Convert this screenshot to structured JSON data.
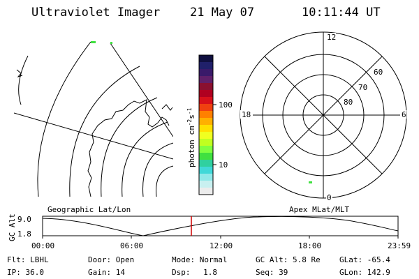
{
  "header": {
    "title": "Ultraviolet Imager",
    "date": "21 May 07",
    "time": "10:11:44 UT"
  },
  "colorbar": {
    "label": "photon cm",
    "label_sup1": "-2",
    "label_mid": "s",
    "label_sup2": "-1",
    "ticks": [
      "100",
      "10"
    ],
    "colors": [
      "#101040",
      "#20206a",
      "#3a1a6a",
      "#60206a",
      "#8a1030",
      "#b00020",
      "#d8101a",
      "#f04010",
      "#ff8000",
      "#ffb000",
      "#ffe000",
      "#f0ff20",
      "#c0ff20",
      "#80ff40",
      "#40e040",
      "#30d0a0",
      "#40d8d8",
      "#90e8e8",
      "#c8f0f0",
      "#ececec"
    ]
  },
  "polar_plot": {
    "mlt_labels": {
      "top": "12",
      "left": "18",
      "right": "6",
      "bottom": "0"
    },
    "lat_labels": [
      "60",
      "70",
      "80"
    ]
  },
  "map_labels": {
    "geo": "Geographic Lat/Lon",
    "apex": "Apex MLat/MLT"
  },
  "altitude_panel": {
    "axis_label": "GC Alt",
    "y_ticks": [
      "9.0",
      "1.8"
    ],
    "x_ticks": [
      "00:00",
      "06:00",
      "12:00",
      "18:00",
      "23:59"
    ]
  },
  "info": {
    "row1": [
      {
        "label": "Flt:",
        "value": "LBHL"
      },
      {
        "label": "Door:",
        "value": "Open"
      },
      {
        "label": "Mode:",
        "value": "Normal"
      },
      {
        "label": "GC Alt:",
        "value": "5.8 Re"
      },
      {
        "label": "GLat:",
        "value": "-65.4"
      }
    ],
    "row2": [
      {
        "label": "IP:",
        "value": "36.0"
      },
      {
        "label": "Gain:",
        "value": "14"
      },
      {
        "label": "Dsp:",
        "value": "1.8"
      },
      {
        "label": "Seq:",
        "value": "39"
      },
      {
        "label": "GLon:",
        "value": "142.9"
      }
    ]
  }
}
